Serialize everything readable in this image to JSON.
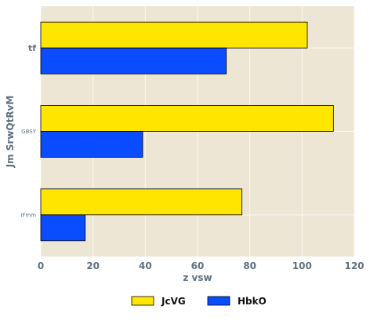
{
  "chart_data": {
    "type": "bar",
    "orientation": "horizontal",
    "categories": [
      "tf",
      "GBSY",
      "IFmm"
    ],
    "series": [
      {
        "name": "JcVG",
        "values": [
          102,
          112,
          77
        ],
        "color": "#ffe600"
      },
      {
        "name": "HbkO",
        "values": [
          71,
          39,
          17
        ],
        "color": "#0a4cff"
      }
    ],
    "xlabel": "z  vsw",
    "ylabel": "Jm SrwQtRvM",
    "xlim": [
      0,
      120
    ],
    "xticks": [
      0,
      20,
      40,
      60,
      80,
      100,
      120
    ],
    "grid": true,
    "legend_position": "bottom-center",
    "plot_background": "#ede6d4",
    "grid_color": "#fbf8f0",
    "tick_color": "#5f707f"
  }
}
